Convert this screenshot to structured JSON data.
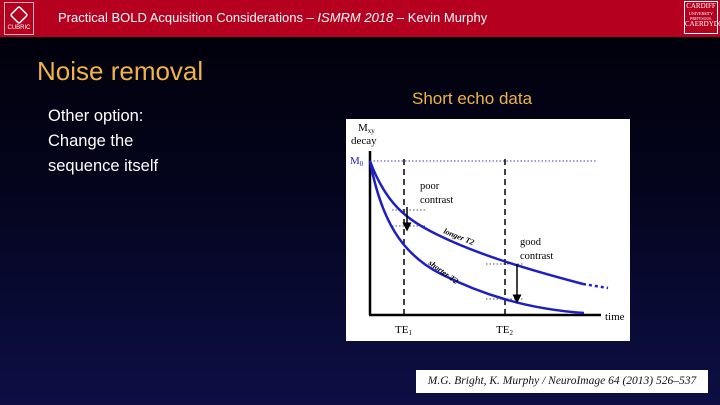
{
  "header": {
    "title_prefix": "Practical BOLD Acquisition Considerations – ",
    "conference": "ISMRM 2018",
    "title_suffix": " – Kevin Murphy",
    "left_logo_text": "CUBRIC",
    "right_logo_lines": [
      "CARDIFF",
      "UNIVERSITY",
      "PRIFYSGOL",
      "CAERDYDD"
    ],
    "bar_color": "#b5001f"
  },
  "slide": {
    "title": "Noise removal",
    "body_lines": [
      "Other option:",
      "Change the",
      "sequence itself"
    ],
    "title_color": "#efb34a"
  },
  "figure": {
    "caption_title": "Short echo data",
    "y_axis_label": "M",
    "y_axis_label_sub": "xy",
    "y_axis_label_line2": "decay",
    "m0_label": "M",
    "m0_sub": "0",
    "x_axis_label": "time",
    "te1_label": "TE",
    "te1_sub": "1",
    "te2_label": "TE",
    "te2_sub": "2",
    "poor_contrast_line1": "poor",
    "poor_contrast_line2": "contrast",
    "good_contrast_line1": "good",
    "good_contrast_line2": "contrast",
    "longer_t2_label": "longer T2",
    "shorter_t2_label": "shorter T2",
    "curve_color": "#1f1fbf"
  },
  "citation": {
    "text": "M.G. Bright, K. Murphy / NeuroImage 64 (2013) 526–537"
  }
}
